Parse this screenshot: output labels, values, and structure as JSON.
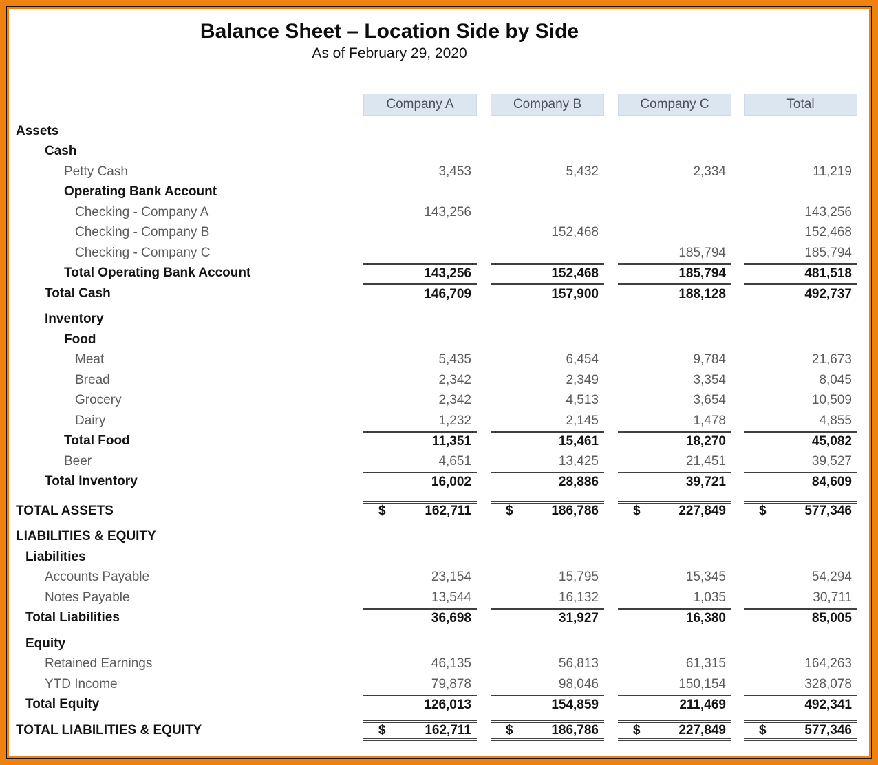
{
  "header": {
    "title": "Balance Sheet – Location Side by Side",
    "subtitle": "As of February 29, 2020"
  },
  "currency_symbol": "$",
  "columns": [
    "Company A",
    "Company B",
    "Company C",
    "Total"
  ],
  "colors": {
    "frame_orange": "#ee8211",
    "frame_pinstripe": "#161616",
    "column_header_bg": "#dce6f1",
    "column_header_text": "#4c525a",
    "row_text_gray": "#5b5b5b",
    "row_text_bold": "#141414",
    "rule_line": "#3f3f3f"
  },
  "rows": [
    {
      "label": "Assets",
      "indent": 0,
      "bold": true
    },
    {
      "label": "Cash",
      "indent": 2,
      "bold": true
    },
    {
      "label": "Petty Cash",
      "indent": 3,
      "values": [
        "3,453",
        "5,432",
        "2,334",
        "11,219"
      ]
    },
    {
      "label": "Operating Bank Account",
      "indent": 3,
      "bold": true
    },
    {
      "label": "Checking - Company A",
      "indent": 4,
      "values": [
        "143,256",
        "",
        "",
        "143,256"
      ]
    },
    {
      "label": "Checking - Company B",
      "indent": 4,
      "values": [
        "",
        "152,468",
        "",
        "152,468"
      ]
    },
    {
      "label": "Checking - Company C",
      "indent": 4,
      "values": [
        "",
        "",
        "185,794",
        "185,794"
      ]
    },
    {
      "label": "Total Operating Bank Account",
      "indent": 3,
      "bold": true,
      "rule": "top",
      "values": [
        "143,256",
        "152,468",
        "185,794",
        "481,518"
      ]
    },
    {
      "label": "Total Cash",
      "indent": 2,
      "bold": true,
      "rule": "top",
      "values": [
        "146,709",
        "157,900",
        "188,128",
        "492,737"
      ]
    },
    {
      "label": "Inventory",
      "indent": 2,
      "bold": true,
      "gap": 8
    },
    {
      "label": "Food",
      "indent": 3,
      "bold": true
    },
    {
      "label": "Meat",
      "indent": 4,
      "values": [
        "5,435",
        "6,454",
        "9,784",
        "21,673"
      ]
    },
    {
      "label": "Bread",
      "indent": 4,
      "values": [
        "2,342",
        "2,349",
        "3,354",
        "8,045"
      ]
    },
    {
      "label": "Grocery",
      "indent": 4,
      "values": [
        "2,342",
        "4,513",
        "3,654",
        "10,509"
      ]
    },
    {
      "label": "Dairy",
      "indent": 4,
      "values": [
        "1,232",
        "2,145",
        "1,478",
        "4,855"
      ]
    },
    {
      "label": "Total Food",
      "indent": 3,
      "bold": true,
      "rule": "top",
      "values": [
        "11,351",
        "15,461",
        "18,270",
        "45,082"
      ]
    },
    {
      "label": "Beer",
      "indent": 3,
      "values": [
        "4,651",
        "13,425",
        "21,451",
        "39,527"
      ]
    },
    {
      "label": "Total Inventory",
      "indent": 2,
      "bold": true,
      "rule": "top",
      "values": [
        "16,002",
        "28,886",
        "39,721",
        "84,609"
      ]
    },
    {
      "label": "TOTAL ASSETS",
      "indent": 0,
      "bold": true,
      "rule": "double",
      "dollar": true,
      "gap": 13,
      "values": [
        "162,711",
        "186,786",
        "227,849",
        "577,346"
      ]
    },
    {
      "label": "LIABILITIES & EQUITY",
      "indent": 0,
      "bold": true,
      "gap": 8
    },
    {
      "label": "Liabilities",
      "indent": 1,
      "bold": true
    },
    {
      "label": "Accounts Payable",
      "indent": 2,
      "values": [
        "23,154",
        "15,795",
        "15,345",
        "54,294"
      ]
    },
    {
      "label": "Notes Payable",
      "indent": 2,
      "values": [
        "13,544",
        "16,132",
        "1,035",
        "30,711"
      ]
    },
    {
      "label": "Total Liabilities",
      "indent": 1,
      "bold": true,
      "rule": "top",
      "values": [
        "36,698",
        "31,927",
        "16,380",
        "85,005"
      ]
    },
    {
      "label": "Equity",
      "indent": 1,
      "bold": true,
      "gap": 8
    },
    {
      "label": "Retained Earnings",
      "indent": 2,
      "values": [
        "46,135",
        "56,813",
        "61,315",
        "164,263"
      ]
    },
    {
      "label": "YTD Income",
      "indent": 2,
      "values": [
        "79,878",
        "98,046",
        "150,154",
        "328,078"
      ]
    },
    {
      "label": "Total Equity",
      "indent": 1,
      "bold": true,
      "rule": "top",
      "values": [
        "126,013",
        "154,859",
        "211,469",
        "492,341"
      ]
    },
    {
      "label": "TOTAL LIABILITIES & EQUITY",
      "indent": 0,
      "bold": true,
      "rule": "double",
      "dollar": true,
      "gap": 8,
      "values": [
        "162,711",
        "186,786",
        "227,849",
        "577,346"
      ]
    }
  ]
}
